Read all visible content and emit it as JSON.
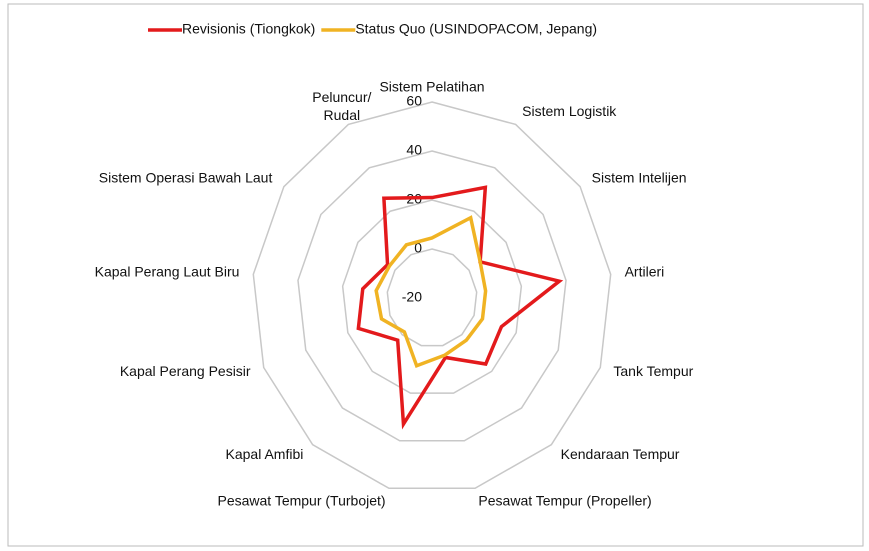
{
  "chart_data": {
    "type": "radar",
    "categories": [
      "Sistem Pelatihan",
      "Sistem Logistik",
      "Sistem Intelijen",
      "Artileri",
      "Tank Tempur",
      "Kendaraan Tempur",
      "Pesawat Tempur (Propeller)",
      "Pesawat Tempur (Turbojet)",
      "Kapal Amfibi",
      "Kapal Perang Pesisir",
      "Kapal Perang Laut Biru",
      "Sistem Operasi Bawah Laut",
      "Peluncur/ Rudal"
    ],
    "series": [
      {
        "name": "Revisionis (Tiongkok)",
        "color": "#e31a1c",
        "values": [
          21,
          31,
          6,
          37,
          13,
          16,
          5,
          33,
          3,
          15,
          11,
          4,
          26
        ]
      },
      {
        "name": "Status Quo (USINDOPACOM, Jepang)",
        "color": "#f0b323",
        "values": [
          4.5,
          17,
          6,
          4,
          4,
          3,
          4,
          8.5,
          -1.5,
          4,
          5,
          3,
          4.5
        ]
      }
    ],
    "rlim": [
      -20,
      60
    ],
    "rticks": [
      -20,
      0,
      20,
      40,
      60
    ],
    "legend": "top"
  }
}
